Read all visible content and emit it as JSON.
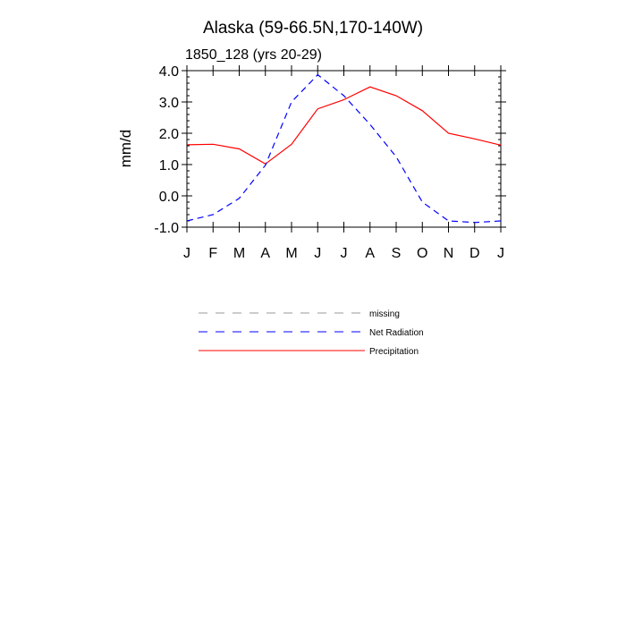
{
  "chart_data": {
    "type": "line",
    "title": "Alaska (59-66.5N,170-140W)",
    "subtitle": "1850_128 (yrs 20-29)",
    "ylabel": "mm/d",
    "xlabel": "",
    "categories": [
      "J",
      "F",
      "M",
      "A",
      "M",
      "J",
      "J",
      "A",
      "S",
      "O",
      "N",
      "D",
      "J"
    ],
    "ylim": [
      -1.0,
      4.0
    ],
    "yticks": [
      "-1.0",
      "0.0",
      "1.0",
      "2.0",
      "3.0",
      "4.0"
    ],
    "series": [
      {
        "name": "Precipitation",
        "color": "#ff0000",
        "dash": "solid",
        "values": [
          1.63,
          1.65,
          1.5,
          1.02,
          1.65,
          2.78,
          3.07,
          3.48,
          3.2,
          2.72,
          2.0,
          1.82,
          1.62
        ]
      },
      {
        "name": "Net Radiation",
        "color": "#0000ff",
        "dash": "dashed",
        "values": [
          -0.8,
          -0.6,
          -0.08,
          0.98,
          3.0,
          3.87,
          3.2,
          2.28,
          1.25,
          -0.2,
          -0.8,
          -0.85,
          -0.8
        ]
      }
    ],
    "legend": {
      "placement": "below",
      "entries": [
        {
          "label": "missing",
          "color": "#999999",
          "dash": "dashed"
        },
        {
          "label": "Net Radiation",
          "color": "#0000ff",
          "dash": "dashed"
        },
        {
          "label": "Precipitation",
          "color": "#ff0000",
          "dash": "solid"
        }
      ]
    }
  }
}
